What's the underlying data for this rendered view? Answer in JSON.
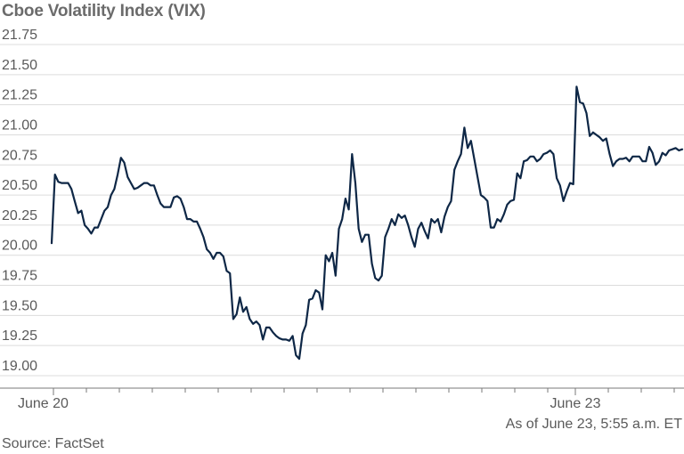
{
  "chart_data": {
    "type": "line",
    "title": "Cboe Volatility Index (VIX)",
    "xlabel": "",
    "ylabel": "",
    "ylim": [
      19.0,
      21.75
    ],
    "y_ticks": [
      "21.75",
      "21.50",
      "21.25",
      "21.00",
      "20.75",
      "20.50",
      "20.25",
      "20.00",
      "19.75",
      "19.50",
      "19.25",
      "19.00"
    ],
    "x_tick_labels": [
      "June 20",
      "June 23"
    ],
    "grid": true,
    "legend": "none",
    "line_color": "#0e2746",
    "series": [
      {
        "values": [
          20.1,
          20.67,
          20.61,
          20.6,
          20.6,
          20.6,
          20.55,
          20.45,
          20.35,
          20.37,
          20.25,
          20.22,
          20.18,
          20.23,
          20.23,
          20.3,
          20.37,
          20.4,
          20.5,
          20.55,
          20.67,
          20.81,
          20.77,
          20.65,
          20.6,
          20.55,
          20.56,
          20.58,
          20.6,
          20.6,
          20.58,
          20.58,
          20.5,
          20.43,
          20.4,
          20.4,
          20.4,
          20.48,
          20.49,
          20.47,
          20.4,
          20.3,
          20.3,
          20.28,
          20.28,
          20.22,
          20.15,
          20.05,
          20.02,
          19.97,
          20.02,
          20.02,
          19.99,
          19.87,
          19.85,
          19.47,
          19.51,
          19.65,
          19.53,
          19.57,
          19.47,
          19.43,
          19.45,
          19.42,
          19.3,
          19.4,
          19.4,
          19.36,
          19.33,
          19.31,
          19.3,
          19.3,
          19.29,
          19.33,
          19.17,
          19.14,
          19.35,
          19.42,
          19.63,
          19.64,
          19.71,
          19.69,
          19.55,
          20.0,
          19.95,
          20.02,
          19.83,
          20.22,
          20.3,
          20.47,
          20.38,
          20.84,
          20.6,
          20.22,
          20.11,
          20.17,
          20.17,
          19.93,
          19.81,
          19.79,
          19.83,
          20.15,
          20.22,
          20.3,
          20.25,
          20.34,
          20.31,
          20.33,
          20.25,
          20.15,
          20.07,
          20.22,
          20.27,
          20.2,
          20.14,
          20.3,
          20.27,
          20.3,
          20.19,
          20.32,
          20.4,
          20.45,
          20.71,
          20.78,
          20.84,
          21.06,
          20.89,
          20.95,
          20.8,
          20.65,
          20.5,
          20.48,
          20.45,
          20.23,
          20.23,
          20.3,
          20.28,
          20.34,
          20.42,
          20.45,
          20.46,
          20.68,
          20.64,
          20.78,
          20.79,
          20.82,
          20.82,
          20.78,
          20.8,
          20.84,
          20.85,
          20.87,
          20.84,
          20.64,
          20.58,
          20.45,
          20.53,
          20.6,
          20.59,
          21.4,
          21.27,
          21.26,
          21.18,
          20.99,
          21.02,
          21.0,
          20.98,
          20.95,
          20.97,
          20.84,
          20.74,
          20.78,
          20.8,
          20.8,
          20.81,
          20.78,
          20.82,
          20.82,
          20.82,
          20.78,
          20.78,
          20.9,
          20.85,
          20.75,
          20.78,
          20.85,
          20.83,
          20.87,
          20.88,
          20.89,
          20.87,
          20.88
        ]
      }
    ]
  },
  "notes": {
    "as_of": "As of June 23, 5:55 a.m. ET",
    "source": "Source: FactSet"
  }
}
